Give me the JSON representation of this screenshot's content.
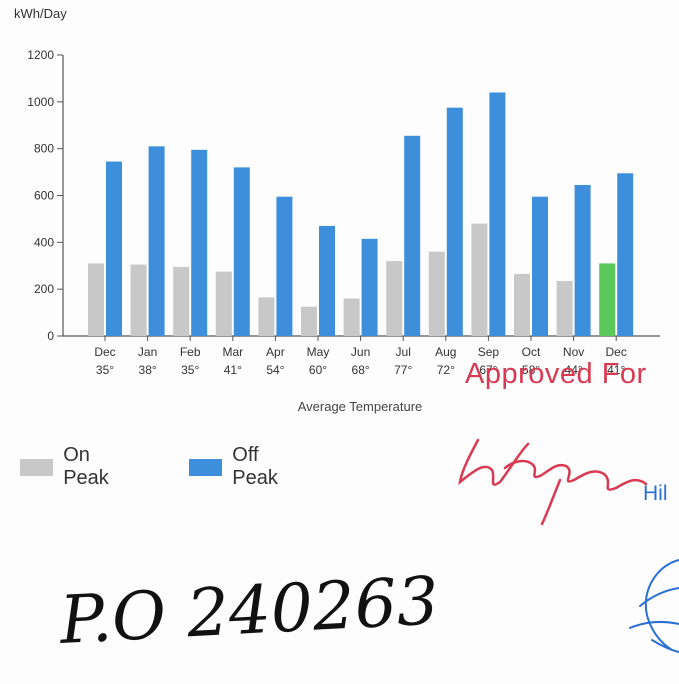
{
  "chart_data": {
    "type": "bar",
    "ylabel": "kWh/Day",
    "xlabel": "Average Temperature",
    "ylim": [
      0,
      1200
    ],
    "yticks": [
      0,
      200,
      400,
      600,
      800,
      1000,
      1200
    ],
    "categories": [
      "Dec",
      "Jan",
      "Feb",
      "Mar",
      "Apr",
      "May",
      "Jun",
      "Jul",
      "Aug",
      "Sep",
      "Oct",
      "Nov",
      "Dec"
    ],
    "temperatures": [
      "35°",
      "38°",
      "35°",
      "41°",
      "54°",
      "60°",
      "68°",
      "77°",
      "72°",
      "67°",
      "58°",
      "44°",
      "41°"
    ],
    "series": [
      {
        "name": "On Peak",
        "color": "#c8c8c8",
        "values": [
          310,
          305,
          295,
          275,
          165,
          125,
          160,
          320,
          360,
          480,
          265,
          235,
          310
        ],
        "highlight": {
          "index": 12,
          "color": "#5cc85c"
        }
      },
      {
        "name": "Off Peak",
        "color": "#3e8fdb",
        "values": [
          745,
          810,
          795,
          720,
          595,
          470,
          415,
          855,
          975,
          1040,
          595,
          645,
          695
        ]
      }
    ],
    "legend": "bottom-left",
    "grid": false
  },
  "stamp": {
    "approved_text": "Approved For",
    "blue_fragment": "Hil"
  },
  "handwritten": {
    "po_number": "P.O 240263"
  }
}
